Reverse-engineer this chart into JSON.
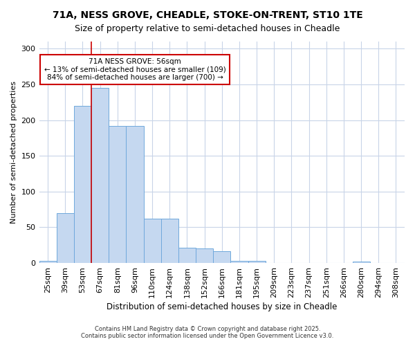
{
  "title_line1": "71A, NESS GROVE, CHEADLE, STOKE-ON-TRENT, ST10 1TE",
  "title_line2": "Size of property relative to semi-detached houses in Cheadle",
  "xlabel": "Distribution of semi-detached houses by size in Cheadle",
  "ylabel": "Number of semi-detached properties",
  "categories": [
    "25sqm",
    "39sqm",
    "53sqm",
    "67sqm",
    "81sqm",
    "96sqm",
    "110sqm",
    "124sqm",
    "138sqm",
    "152sqm",
    "166sqm",
    "181sqm",
    "195sqm",
    "209sqm",
    "223sqm",
    "237sqm",
    "251sqm",
    "266sqm",
    "280sqm",
    "294sqm",
    "308sqm"
  ],
  "bar_values": [
    3,
    70,
    220,
    245,
    192,
    192,
    62,
    62,
    21,
    20,
    17,
    3,
    3,
    0,
    0,
    0,
    0,
    0,
    2,
    0,
    0
  ],
  "bar_color": "#c5d8f0",
  "bar_edge_color": "#6fa8dc",
  "red_line_x": 2.5,
  "annotation_title": "71A NESS GROVE: 56sqm",
  "annotation_line2": "← 13% of semi-detached houses are smaller (109)",
  "annotation_line3": "84% of semi-detached houses are larger (700) →",
  "annotation_box_facecolor": "#ffffff",
  "annotation_box_edgecolor": "#cc0000",
  "ylim": [
    0,
    310
  ],
  "yticks": [
    0,
    50,
    100,
    150,
    200,
    250,
    300
  ],
  "bg_color": "#ffffff",
  "plot_bg_color": "#ffffff",
  "grid_color": "#c8d4e8",
  "footer_line1": "Contains HM Land Registry data © Crown copyright and database right 2025.",
  "footer_line2": "Contains public sector information licensed under the Open Government Licence v3.0.",
  "title_fontsize": 10,
  "subtitle_fontsize": 9,
  "xlabel_fontsize": 8.5,
  "ylabel_fontsize": 8,
  "tick_fontsize": 8,
  "footer_fontsize": 6
}
